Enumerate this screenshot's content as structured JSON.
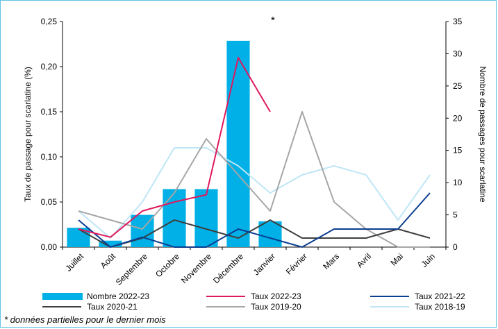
{
  "chart_data": {
    "type": "bar+line",
    "categories": [
      "Juillet",
      "Août",
      "Septembre",
      "Octobre",
      "Novembre",
      "Décembre",
      "Janvier",
      "Février",
      "Mars",
      "Avril",
      "Mai",
      "Juin"
    ],
    "ylabel_left": "Taux de passage pour scarlatine (%)",
    "ylabel_right": "Nombre de passages pour scarlatine",
    "ylim_left": [
      0,
      0.25
    ],
    "ylim_right": [
      0,
      35
    ],
    "yticks_left": [
      "0,00",
      "0,05",
      "0,10",
      "0,15",
      "0,20",
      "0,25"
    ],
    "yticks_right": [
      "0",
      "5",
      "10",
      "15",
      "20",
      "25",
      "30",
      "35"
    ],
    "annotation": "*",
    "bars": {
      "name": "Nombre 2022-23",
      "axis": "right",
      "color": "#00b0e6",
      "values": [
        3,
        1,
        5,
        9,
        9,
        32,
        4,
        null,
        null,
        null,
        null,
        null
      ]
    },
    "series": [
      {
        "name": "Taux 2022-23",
        "axis": "left",
        "color": "#e0185e",
        "width": 2,
        "values": [
          0.02,
          0.011,
          0.04,
          0.05,
          0.058,
          0.21,
          0.15,
          null,
          null,
          null,
          null,
          null
        ]
      },
      {
        "name": "Taux 2021-22",
        "axis": "left",
        "color": "#0b3d91",
        "width": 2,
        "values": [
          0.03,
          0.0,
          0.011,
          0.0,
          0.0,
          0.02,
          0.01,
          0.0,
          0.02,
          0.02,
          0.02,
          0.06
        ]
      },
      {
        "name": "Taux 2020-21",
        "axis": "left",
        "color": "#3f3f3f",
        "width": 2,
        "values": [
          0.02,
          0.0,
          0.01,
          0.03,
          0.02,
          0.01,
          0.03,
          0.01,
          0.01,
          0.01,
          0.02,
          0.01
        ]
      },
      {
        "name": "Taux 2019-20",
        "axis": "left",
        "color": "#a6a6a6",
        "width": 2,
        "values": [
          0.04,
          0.03,
          0.02,
          0.06,
          0.12,
          0.08,
          0.04,
          0.15,
          0.05,
          0.02,
          0.0,
          0.0
        ]
      },
      {
        "name": "Taux 2018-19",
        "axis": "left",
        "color": "#bfe6f7",
        "width": 2,
        "values": [
          0.04,
          0.01,
          0.05,
          0.11,
          0.11,
          0.09,
          0.06,
          0.08,
          0.09,
          0.08,
          0.03,
          0.08
        ]
      }
    ],
    "legend": [
      {
        "label": "Nombre 2022-23",
        "kind": "bar",
        "color": "#00b0e6"
      },
      {
        "label": "Taux 2022-23",
        "kind": "line",
        "color": "#e0185e"
      },
      {
        "label": "Taux 2021-22",
        "kind": "line",
        "color": "#0b3d91"
      },
      {
        "label": "Taux 2020-21",
        "kind": "line",
        "color": "#3f3f3f"
      },
      {
        "label": "Taux 2019-20",
        "kind": "line",
        "color": "#a6a6a6"
      },
      {
        "label": "Taux 2018-19",
        "kind": "line",
        "color": "#bfe6f7"
      }
    ],
    "legend_position": "bottom",
    "grid": false
  },
  "footnote": "* données partielles pour le dernier mois"
}
